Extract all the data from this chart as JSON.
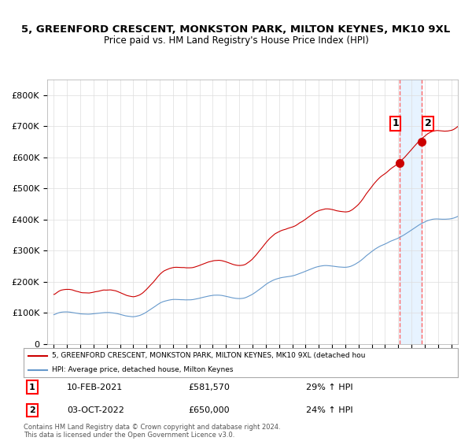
{
  "title_line1": "5, GREENFORD CRESCENT, MONKSTON PARK, MILTON KEYNES, MK10 9XL",
  "title_line2": "Price paid vs. HM Land Registry's House Price Index (HPI)",
  "xlabel": "",
  "ylabel": "",
  "ylim": [
    0,
    850000
  ],
  "ytick_labels": [
    "0",
    "£100K",
    "£200K",
    "£300K",
    "£400K",
    "£500K",
    "£600K",
    "£700K",
    "£800K"
  ],
  "ytick_values": [
    0,
    100000,
    200000,
    300000,
    400000,
    500000,
    600000,
    700000,
    800000
  ],
  "year_start": 1995,
  "year_end": 2025,
  "sale1_date": "10-FEB-2021",
  "sale1_price": 581570,
  "sale1_label": "1",
  "sale1_pct": "29% ↑ HPI",
  "sale2_date": "03-OCT-2022",
  "sale2_price": 650000,
  "sale2_label": "2",
  "sale2_pct": "24% ↑ HPI",
  "legend_red": "5, GREENFORD CRESCENT, MONKSTON PARK, MILTON KEYNES, MK10 9XL (detached hou",
  "legend_blue": "HPI: Average price, detached house, Milton Keynes",
  "footer": "Contains HM Land Registry data © Crown copyright and database right 2024.\nThis data is licensed under the Open Government Licence v3.0.",
  "red_color": "#cc0000",
  "blue_color": "#6699cc",
  "marker_color": "#cc0000",
  "vline_color": "#ff6666",
  "shade_color": "#ddeeff",
  "background_color": "#ffffff",
  "grid_color": "#dddddd"
}
